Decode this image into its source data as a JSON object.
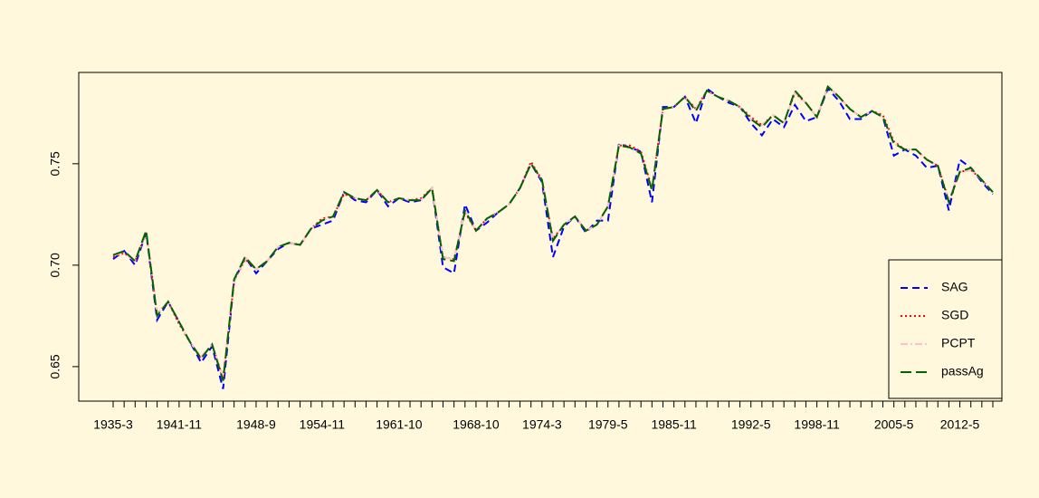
{
  "chart_data": {
    "type": "line",
    "categories": [
      "1935-3",
      null,
      null,
      null,
      null,
      null,
      "1941-11",
      null,
      null,
      null,
      null,
      null,
      null,
      "1948-9",
      null,
      null,
      null,
      null,
      null,
      "1954-11",
      null,
      null,
      null,
      null,
      null,
      null,
      "1961-10",
      null,
      null,
      null,
      null,
      null,
      null,
      "1968-10",
      null,
      null,
      null,
      null,
      null,
      "1974-3",
      null,
      null,
      null,
      null,
      null,
      "1979-5",
      null,
      null,
      null,
      null,
      null,
      "1985-11",
      null,
      null,
      null,
      null,
      null,
      null,
      "1992-5",
      null,
      null,
      null,
      null,
      null,
      "1998-11",
      null,
      null,
      null,
      null,
      null,
      null,
      "2005-5",
      null,
      null,
      null,
      null,
      null,
      "2012-5",
      null,
      null,
      null
    ],
    "series": [
      {
        "name": "SAG",
        "color": "#0000ff",
        "linestyle": "dashed",
        "values": [
          0.703,
          0.707,
          0.7,
          0.716,
          0.673,
          0.682,
          0.672,
          0.662,
          0.652,
          0.66,
          0.639,
          0.692,
          0.704,
          0.696,
          0.702,
          0.708,
          0.711,
          0.71,
          0.718,
          0.72,
          0.722,
          0.736,
          0.732,
          0.731,
          0.737,
          0.729,
          0.733,
          0.731,
          0.732,
          0.738,
          0.699,
          0.696,
          0.73,
          0.717,
          0.721,
          0.726,
          0.73,
          0.738,
          0.75,
          0.741,
          0.704,
          0.719,
          0.724,
          0.716,
          0.722,
          0.722,
          0.76,
          0.758,
          0.756,
          0.731,
          0.778,
          0.778,
          0.783,
          0.77,
          0.787,
          0.783,
          0.78,
          0.778,
          0.77,
          0.764,
          0.772,
          0.768,
          0.779,
          0.771,
          0.773,
          0.787,
          0.781,
          0.772,
          0.772,
          0.776,
          0.773,
          0.754,
          0.757,
          0.754,
          0.748,
          0.749,
          0.727,
          0.752,
          0.748,
          0.741,
          0.735
        ]
      },
      {
        "name": "SGD",
        "color": "#ff0000",
        "linestyle": "dotted",
        "values": [
          0.704,
          0.706,
          0.702,
          0.716,
          0.676,
          0.682,
          0.671,
          0.662,
          0.654,
          0.661,
          0.644,
          0.692,
          0.703,
          0.698,
          0.702,
          0.709,
          0.711,
          0.71,
          0.718,
          0.723,
          0.724,
          0.735,
          0.733,
          0.732,
          0.737,
          0.731,
          0.733,
          0.732,
          0.733,
          0.738,
          0.704,
          0.703,
          0.726,
          0.717,
          0.723,
          0.726,
          0.73,
          0.738,
          0.751,
          0.742,
          0.713,
          0.72,
          0.724,
          0.717,
          0.72,
          0.729,
          0.759,
          0.759,
          0.756,
          0.738,
          0.777,
          0.778,
          0.783,
          0.777,
          0.786,
          0.783,
          0.781,
          0.778,
          0.773,
          0.769,
          0.774,
          0.77,
          0.785,
          0.78,
          0.773,
          0.788,
          0.783,
          0.777,
          0.773,
          0.776,
          0.774,
          0.761,
          0.757,
          0.757,
          0.752,
          0.749,
          0.732,
          0.746,
          0.747,
          0.742,
          0.736
        ]
      },
      {
        "name": "PCPT",
        "color": "#ffc0cb",
        "linestyle": "dotdash",
        "values": [
          0.705,
          0.706,
          0.702,
          0.716,
          0.676,
          0.682,
          0.672,
          0.662,
          0.655,
          0.661,
          0.645,
          0.692,
          0.704,
          0.698,
          0.702,
          0.709,
          0.711,
          0.71,
          0.718,
          0.722,
          0.724,
          0.736,
          0.733,
          0.732,
          0.737,
          0.731,
          0.733,
          0.732,
          0.732,
          0.738,
          0.704,
          0.703,
          0.727,
          0.717,
          0.723,
          0.726,
          0.73,
          0.738,
          0.75,
          0.742,
          0.713,
          0.72,
          0.724,
          0.717,
          0.72,
          0.729,
          0.759,
          0.758,
          0.755,
          0.738,
          0.777,
          0.778,
          0.783,
          0.777,
          0.786,
          0.783,
          0.781,
          0.778,
          0.772,
          0.769,
          0.774,
          0.77,
          0.785,
          0.78,
          0.773,
          0.788,
          0.783,
          0.777,
          0.773,
          0.776,
          0.773,
          0.76,
          0.757,
          0.757,
          0.752,
          0.749,
          0.732,
          0.746,
          0.747,
          0.742,
          0.736
        ]
      },
      {
        "name": "passAg",
        "color": "#006400",
        "linestyle": "longdash",
        "values": [
          0.705,
          0.707,
          0.702,
          0.717,
          0.675,
          0.682,
          0.672,
          0.662,
          0.654,
          0.661,
          0.643,
          0.693,
          0.704,
          0.698,
          0.702,
          0.709,
          0.711,
          0.71,
          0.718,
          0.722,
          0.724,
          0.736,
          0.733,
          0.732,
          0.737,
          0.731,
          0.733,
          0.732,
          0.732,
          0.738,
          0.703,
          0.702,
          0.727,
          0.717,
          0.723,
          0.726,
          0.73,
          0.738,
          0.75,
          0.742,
          0.712,
          0.72,
          0.724,
          0.717,
          0.72,
          0.729,
          0.759,
          0.758,
          0.755,
          0.737,
          0.777,
          0.778,
          0.783,
          0.776,
          0.786,
          0.783,
          0.781,
          0.778,
          0.772,
          0.768,
          0.774,
          0.77,
          0.786,
          0.78,
          0.773,
          0.788,
          0.783,
          0.777,
          0.773,
          0.776,
          0.773,
          0.76,
          0.757,
          0.757,
          0.752,
          0.749,
          0.731,
          0.746,
          0.748,
          0.742,
          0.736
        ]
      }
    ],
    "ylim": [
      0.633,
      0.795
    ],
    "yticks": [
      0.65,
      {
        "value": 0.7,
        "label": "0.70"
      },
      0.75
    ],
    "legend": "bottom-right"
  }
}
